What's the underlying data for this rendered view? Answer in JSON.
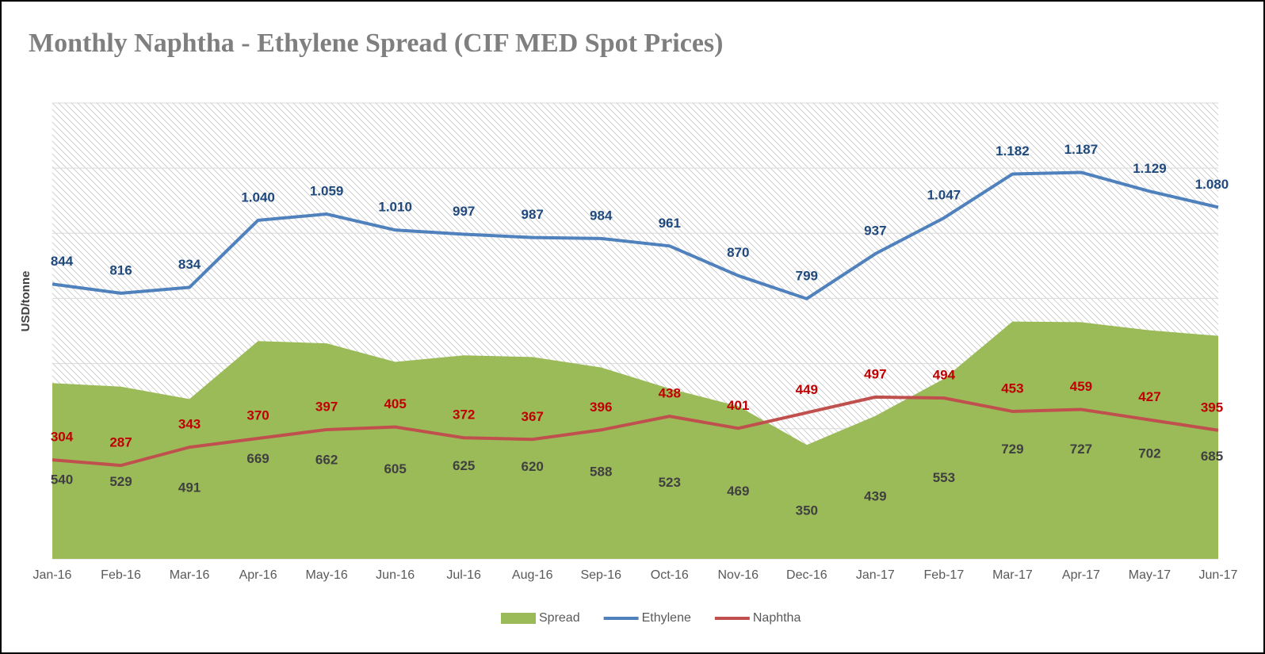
{
  "chart_data": {
    "type": "line",
    "title": "Monthly Naphtha - Ethylene Spread (CIF MED Spot Prices)",
    "y_label": "USD/tonne",
    "categories": [
      "Jan-16",
      "Feb-16",
      "Mar-16",
      "Apr-16",
      "May-16",
      "Jun-16",
      "Jul-16",
      "Aug-16",
      "Sep-16",
      "Oct-16",
      "Nov-16",
      "Dec-16",
      "Jan-17",
      "Feb-17",
      "Mar-17",
      "Apr-17",
      "May-17",
      "Jun-17"
    ],
    "series": [
      {
        "name": "Spread",
        "type": "area",
        "color": "#9bbb59",
        "label_color": "#404040",
        "values": [
          540,
          529,
          491,
          669,
          662,
          605,
          625,
          620,
          588,
          523,
          469,
          350,
          439,
          553,
          729,
          727,
          702,
          685
        ]
      },
      {
        "name": "Ethylene",
        "type": "line",
        "color": "#4f81bd",
        "label_color": "#1f497d",
        "values": [
          844,
          816,
          834,
          1040,
          1059,
          1010,
          997,
          987,
          984,
          961,
          870,
          799,
          937,
          1047,
          1182,
          1187,
          1129,
          1080
        ],
        "value_labels": [
          "844",
          "816",
          "834",
          "1.040",
          "1.059",
          "1.010",
          "997",
          "987",
          "984",
          "961",
          "870",
          "799",
          "937",
          "1.047",
          "1.182",
          "1.187",
          "1.129",
          "1.080"
        ]
      },
      {
        "name": "Naphtha",
        "type": "line",
        "color": "#c0504d",
        "label_color": "#c00000",
        "values": [
          304,
          287,
          343,
          370,
          397,
          405,
          372,
          367,
          396,
          438,
          401,
          449,
          497,
          494,
          453,
          459,
          427,
          395
        ]
      }
    ],
    "ylim": [
      0,
      1400
    ],
    "yticks": [
      0,
      200,
      400,
      600,
      800,
      1000,
      1200,
      1400
    ],
    "grid": true,
    "legend": "bottom"
  }
}
